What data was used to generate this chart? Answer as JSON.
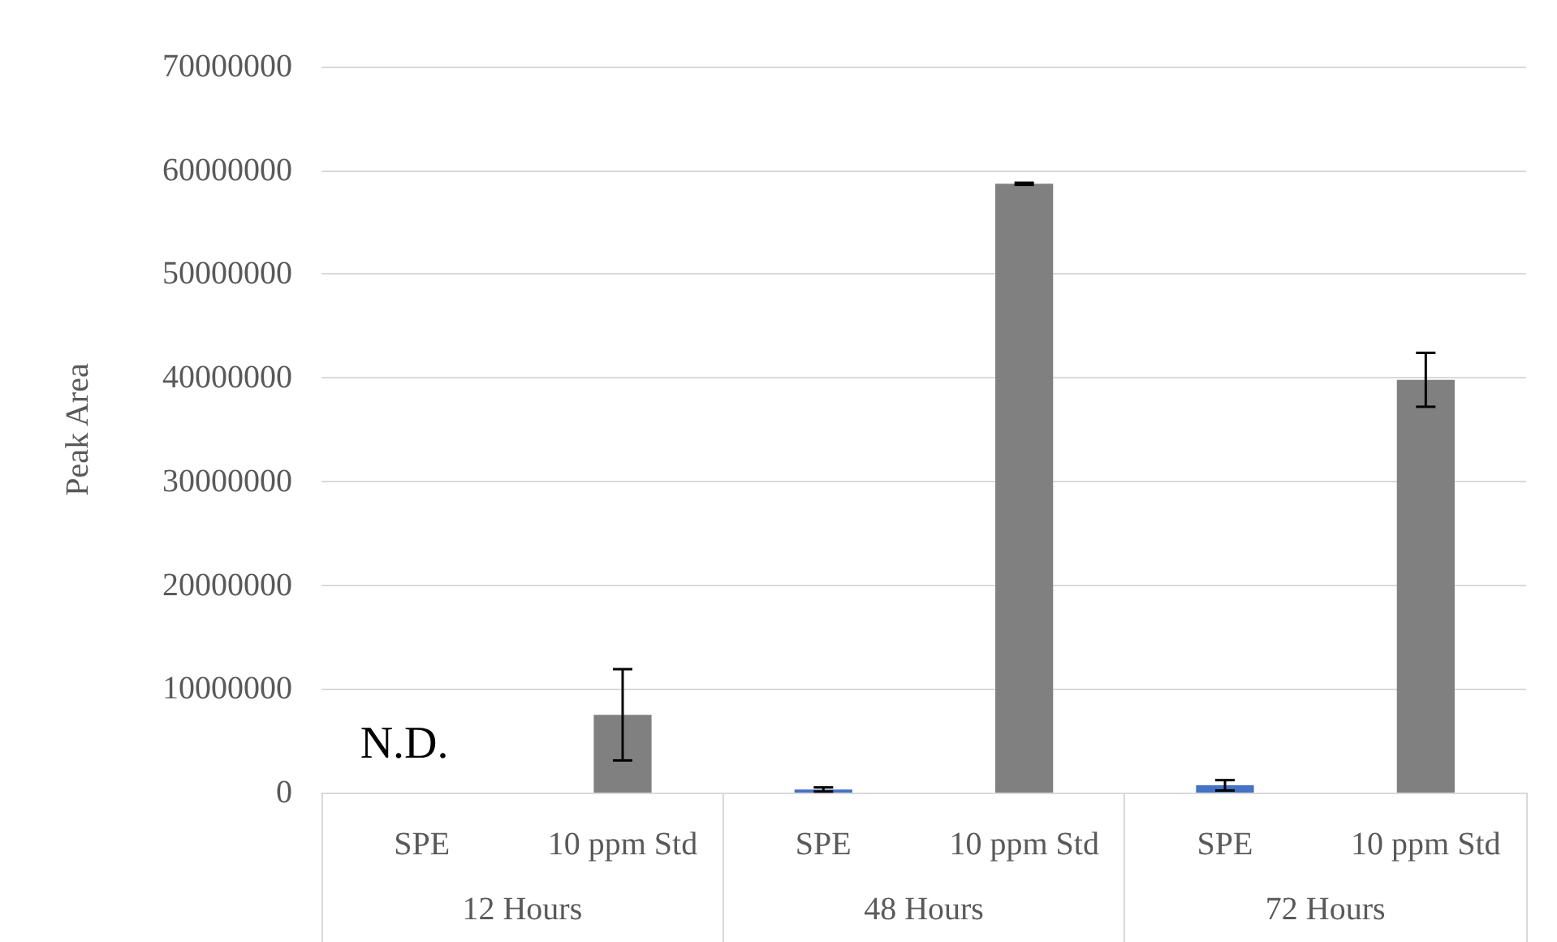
{
  "chart_data": {
    "type": "bar",
    "ylabel": "Peak Area",
    "categories": [
      "12 Hours",
      "48 Hours",
      "72 Hours"
    ],
    "series": [
      {
        "name": "SPE",
        "color": "#4472c4",
        "values": [
          null,
          300000,
          700000
        ],
        "errors": [
          null,
          200000,
          500000
        ]
      },
      {
        "name": "10 ppm Std",
        "color": "#808080",
        "values": [
          7500000,
          58700000,
          39800000
        ],
        "errors": [
          4400000,
          100000,
          2600000
        ]
      }
    ],
    "ylim": [
      0,
      70000000
    ],
    "yticks": [
      0,
      10000000,
      20000000,
      30000000,
      40000000,
      50000000,
      60000000,
      70000000
    ],
    "grid": "y",
    "annotations": [
      "N.D."
    ]
  }
}
